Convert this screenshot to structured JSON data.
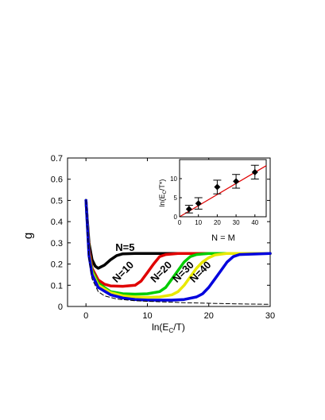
{
  "chart_data": [
    {
      "type": "line",
      "ylabel": "g",
      "xlabel_main": "ln(E",
      "xlabel_sub": "C",
      "xlabel_tail": "/T)",
      "xlim": [
        -3,
        30
      ],
      "ylim": [
        0,
        0.7
      ],
      "xticks": [
        0,
        10,
        20,
        30
      ],
      "yticks": [
        0.0,
        0.1,
        0.2,
        0.3,
        0.4,
        0.5,
        0.6,
        0.7
      ],
      "grid": false,
      "series": [
        {
          "name": "N=5",
          "color": "#000000",
          "x": [
            0,
            0.5,
            1,
            1.5,
            2,
            3,
            4,
            5,
            6,
            8,
            10,
            14,
            20,
            30
          ],
          "y": [
            0.5,
            0.3,
            0.22,
            0.19,
            0.18,
            0.195,
            0.22,
            0.24,
            0.248,
            0.25,
            0.25,
            0.25,
            0.25,
            0.25
          ]
        },
        {
          "name": "N=10",
          "color": "#e00000",
          "x": [
            0,
            0.5,
            1,
            2,
            3,
            4,
            6,
            8,
            9,
            10,
            11,
            12,
            13,
            15,
            20,
            30
          ],
          "y": [
            0.5,
            0.27,
            0.18,
            0.125,
            0.105,
            0.097,
            0.095,
            0.1,
            0.12,
            0.16,
            0.2,
            0.235,
            0.245,
            0.25,
            0.25,
            0.25
          ]
        },
        {
          "name": "N=20",
          "color": "#00cc00",
          "x": [
            0,
            0.5,
            1,
            2,
            4,
            6,
            8,
            10,
            12,
            13,
            14,
            15,
            16,
            17,
            18,
            20,
            30
          ],
          "y": [
            0.5,
            0.25,
            0.17,
            0.11,
            0.07,
            0.06,
            0.058,
            0.06,
            0.07,
            0.09,
            0.13,
            0.17,
            0.21,
            0.235,
            0.245,
            0.25,
            0.25
          ]
        },
        {
          "name": "N=30",
          "color": "#e8e800",
          "x": [
            0,
            0.5,
            1,
            2,
            4,
            6,
            8,
            10,
            12,
            14,
            15,
            16,
            17,
            18,
            19,
            20,
            21,
            23,
            30
          ],
          "y": [
            0.5,
            0.25,
            0.16,
            0.1,
            0.065,
            0.05,
            0.045,
            0.043,
            0.045,
            0.055,
            0.07,
            0.1,
            0.14,
            0.18,
            0.21,
            0.23,
            0.243,
            0.25,
            0.25
          ]
        },
        {
          "name": "N=40",
          "color": "#0000dd",
          "x": [
            0,
            0.5,
            1,
            2,
            4,
            6,
            8,
            10,
            12,
            14,
            16,
            18,
            19,
            20,
            21,
            22,
            23,
            24,
            25,
            30
          ],
          "y": [
            0.5,
            0.24,
            0.15,
            0.09,
            0.055,
            0.04,
            0.033,
            0.03,
            0.03,
            0.03,
            0.033,
            0.045,
            0.06,
            0.09,
            0.13,
            0.17,
            0.21,
            0.235,
            0.245,
            0.25
          ]
        },
        {
          "name": "",
          "color": "#000000",
          "dashed": true,
          "x": [
            0,
            0.5,
            1,
            2,
            3,
            5,
            8,
            12,
            16,
            20,
            25,
            30
          ],
          "y": [
            0.5,
            0.22,
            0.13,
            0.07,
            0.05,
            0.035,
            0.027,
            0.022,
            0.018,
            0.015,
            0.012,
            0.01
          ]
        }
      ],
      "annotations": [
        {
          "text": "N=5",
          "color": "#000000",
          "x": 4.8,
          "y": 0.262,
          "rotate": 0
        },
        {
          "text": "N=10",
          "color": "#000000",
          "x": 5.0,
          "y": 0.11,
          "rotate": -45
        },
        {
          "text": "N=20",
          "color": "#000000",
          "x": 11.2,
          "y": 0.11,
          "rotate": -45
        },
        {
          "text": "N=30",
          "color": "#000000",
          "x": 14.8,
          "y": 0.11,
          "rotate": -45
        },
        {
          "text": "N=40",
          "color": "#000000",
          "x": 17.6,
          "y": 0.11,
          "rotate": -45
        }
      ]
    },
    {
      "type": "scatter",
      "inset": true,
      "ylabel": "ln(E",
      "ylabel_sub": "C",
      "ylabel_tail": "/T*)",
      "xlabel": "N = M",
      "xlim": [
        0,
        46
      ],
      "ylim": [
        0,
        15
      ],
      "xticks": [
        0,
        10,
        20,
        30,
        40
      ],
      "yticks": [
        0,
        5,
        10
      ],
      "points": {
        "x": [
          5,
          10,
          20,
          30,
          40
        ],
        "y": [
          2.0,
          3.5,
          7.8,
          9.3,
          11.7
        ],
        "err": [
          1.0,
          1.5,
          1.8,
          1.8,
          1.8
        ],
        "color": "#000000"
      },
      "fit": {
        "x": [
          0,
          46
        ],
        "y": [
          0.0,
          13.4
        ],
        "color": "#e00000"
      }
    }
  ]
}
